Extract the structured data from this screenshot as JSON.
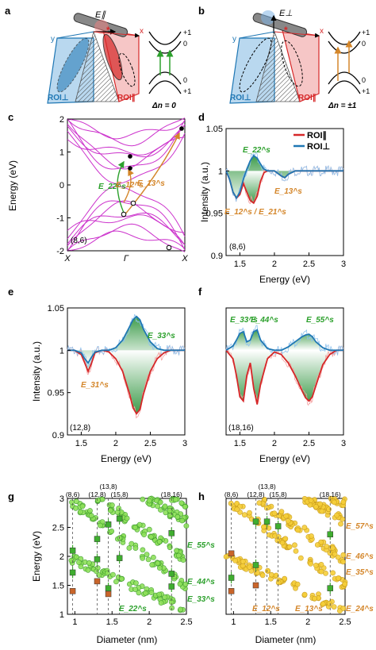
{
  "panel_letters": {
    "a": "a",
    "b": "b",
    "c": "c",
    "d": "d",
    "e": "e",
    "f": "f",
    "g": "g",
    "h": "h"
  },
  "colors": {
    "roi_par": "#d62728",
    "roi_perp": "#1f77b4",
    "green": "#2ca02c",
    "orange": "#d4862a",
    "gold": "#f2c230",
    "band": "#cc33cc"
  },
  "schematic": {
    "e_parallel": "E∥",
    "e_perp": "E⊥",
    "axis_x": "x",
    "axis_y": "y",
    "roi_perp": "ROI⊥",
    "roi_par": "ROI∥",
    "delta_n_a": "Δn = 0",
    "delta_n_b": "Δn = ±1",
    "levels": [
      "+1",
      "0",
      "0",
      "+1"
    ]
  },
  "chart_data": [
    {
      "id": "c",
      "type": "line",
      "ylabel": "Energy (eV)",
      "ylim": [
        -2,
        2
      ],
      "yticks": [
        "2",
        "1",
        "0",
        "-1",
        "-2"
      ],
      "xticks": [
        "X",
        "Γ",
        "X"
      ],
      "annotation": "(8,6)",
      "arrow_labels": [
        "E_22^s",
        "E_12^s",
        "E_13^s"
      ],
      "filled_states_eV": [
        1.7,
        1.0,
        0.85
      ],
      "empty_states_eV": [
        -0.45,
        -0.9,
        -1.85
      ]
    },
    {
      "id": "d",
      "type": "line",
      "xlabel": "Energy (eV)",
      "ylabel": "Intensity (a.u.)",
      "xlim": [
        1.3,
        3
      ],
      "ylim": [
        0.9,
        1.05
      ],
      "xticks": [
        "1.5",
        "2",
        "2.5",
        "3"
      ],
      "yticks": [
        "1.05",
        "1",
        "0.95",
        "0.9"
      ],
      "annotation": "(8,6)",
      "series": [
        {
          "name": "ROI∥",
          "x": [
            1.3,
            1.35,
            1.4,
            1.45,
            1.5,
            1.55,
            1.6,
            1.65,
            1.7,
            1.75,
            1.8,
            1.85,
            1.9,
            2.0,
            2.1,
            2.15,
            2.2,
            2.3,
            2.5,
            2.7,
            3.0
          ],
          "y": [
            1.0,
            0.99,
            0.975,
            0.968,
            0.972,
            0.985,
            0.975,
            0.965,
            0.962,
            0.97,
            0.988,
            0.998,
            1.0,
            1.0,
            0.994,
            0.992,
            0.996,
            1.0,
            1.0,
            1.0,
            1.0
          ]
        },
        {
          "name": "ROI⊥",
          "x": [
            1.3,
            1.35,
            1.4,
            1.45,
            1.5,
            1.55,
            1.6,
            1.65,
            1.7,
            1.75,
            1.8,
            1.85,
            1.9,
            2.0,
            2.1,
            2.15,
            2.2,
            2.3,
            2.5,
            2.7,
            3.0
          ],
          "y": [
            1.0,
            0.99,
            0.975,
            0.968,
            0.975,
            0.99,
            1.002,
            1.012,
            1.018,
            1.015,
            1.008,
            1.002,
            1.0,
            1.0,
            0.994,
            0.992,
            0.996,
            1.0,
            1.0,
            1.0,
            1.0
          ]
        }
      ],
      "peak_labels": [
        "E_22^s",
        "E_12^s / E_21^s",
        "E_13^s"
      ]
    },
    {
      "id": "e",
      "type": "line",
      "xlabel": "Energy (eV)",
      "ylabel": "Intensity (a.u.)",
      "xlim": [
        1.3,
        3
      ],
      "ylim": [
        0.9,
        1.05
      ],
      "xticks": [
        "1.5",
        "2",
        "2.5",
        "3"
      ],
      "yticks": [
        "1.05",
        "1",
        "0.95",
        "0.9"
      ],
      "annotation": "(12,8)",
      "series": [
        {
          "name": "ROI∥",
          "x": [
            1.3,
            1.4,
            1.5,
            1.55,
            1.6,
            1.65,
            1.7,
            1.8,
            1.9,
            2.0,
            2.1,
            2.2,
            2.25,
            2.3,
            2.35,
            2.4,
            2.5,
            2.6,
            2.7,
            2.8,
            2.9,
            3.0
          ],
          "y": [
            1.0,
            1.0,
            0.995,
            0.985,
            0.975,
            0.985,
            0.997,
            1.0,
            0.998,
            0.99,
            0.975,
            0.948,
            0.932,
            0.925,
            0.93,
            0.948,
            0.975,
            0.99,
            0.997,
            1.0,
            1.0,
            1.0
          ]
        },
        {
          "name": "ROI⊥",
          "x": [
            1.3,
            1.4,
            1.5,
            1.55,
            1.6,
            1.65,
            1.7,
            1.8,
            1.9,
            2.0,
            2.1,
            2.2,
            2.25,
            2.3,
            2.35,
            2.4,
            2.5,
            2.6,
            2.7,
            2.8,
            2.9,
            3.0
          ],
          "y": [
            1.0,
            1.0,
            0.997,
            0.99,
            0.985,
            0.992,
            0.998,
            1.0,
            1.0,
            1.003,
            1.012,
            1.028,
            1.036,
            1.04,
            1.036,
            1.025,
            1.01,
            1.002,
            1.0,
            1.0,
            1.0,
            1.0
          ]
        }
      ],
      "peak_labels": [
        "E_33^s",
        "E_31^s"
      ]
    },
    {
      "id": "f",
      "type": "line",
      "xlabel": "Energy (eV)",
      "xlim": [
        1.3,
        3
      ],
      "ylim": [
        0.9,
        1.05
      ],
      "xticks": [
        "1.5",
        "2",
        "2.5",
        "3"
      ],
      "annotation": "(18,16)",
      "series": [
        {
          "name": "ROI∥",
          "x": [
            1.3,
            1.4,
            1.45,
            1.5,
            1.55,
            1.6,
            1.65,
            1.7,
            1.75,
            1.8,
            1.9,
            2.0,
            2.1,
            2.2,
            2.3,
            2.4,
            2.45,
            2.5,
            2.55,
            2.6,
            2.7,
            2.8,
            2.9,
            3.0
          ],
          "y": [
            1.0,
            0.99,
            0.97,
            0.945,
            0.94,
            0.97,
            0.985,
            0.955,
            0.936,
            0.96,
            0.99,
            0.998,
            0.995,
            0.985,
            0.97,
            0.952,
            0.944,
            0.94,
            0.945,
            0.958,
            0.983,
            0.995,
            1.0,
            1.0
          ]
        },
        {
          "name": "ROI⊥",
          "x": [
            1.3,
            1.4,
            1.45,
            1.5,
            1.55,
            1.6,
            1.65,
            1.7,
            1.75,
            1.8,
            1.9,
            2.0,
            2.1,
            2.2,
            2.3,
            2.4,
            2.45,
            2.5,
            2.55,
            2.6,
            2.7,
            2.8,
            2.9,
            3.0
          ],
          "y": [
            1.0,
            1.005,
            1.012,
            1.02,
            1.022,
            1.01,
            1.012,
            1.022,
            1.024,
            1.012,
            1.002,
            1.0,
            1.0,
            1.004,
            1.01,
            1.016,
            1.018,
            1.019,
            1.016,
            1.01,
            1.003,
            1.0,
            1.0,
            1.0
          ]
        }
      ],
      "peak_labels": [
        "E_33^s",
        "E_44^s",
        "E_55^s"
      ]
    },
    {
      "id": "g",
      "type": "scatter",
      "xlabel": "Diameter (nm)",
      "ylabel": "Energy (eV)",
      "xlim": [
        0.9,
        2.5
      ],
      "ylim": [
        1,
        3
      ],
      "xticks": [
        "1",
        "1.5",
        "2",
        "2.5"
      ],
      "yticks": [
        "3",
        "2.5",
        "2",
        "1.5",
        "1"
      ],
      "top_labels": [
        "(8,6)",
        "(12,8)",
        "(13,8)",
        "(15,8)",
        "(18,16)"
      ],
      "top_label_x": [
        0.97,
        1.3,
        1.45,
        1.6,
        2.3
      ],
      "band_labels": [
        "E_55^s",
        "E_44^s",
        "E_33^s",
        "E_22^s"
      ],
      "points": [
        {
          "name": "measured",
          "x": [
            0.97,
            0.97,
            1.3,
            1.3,
            1.45,
            1.45,
            1.6,
            1.6,
            2.3,
            2.3,
            2.3
          ],
          "y": [
            1.72,
            2.1,
            1.95,
            2.3,
            1.45,
            2.55,
            1.97,
            2.65,
            1.48,
            1.7,
            2.4
          ]
        },
        {
          "name": "measured-cross",
          "x": [
            0.97,
            1.3,
            1.45
          ],
          "y": [
            1.4,
            1.57,
            1.35
          ]
        }
      ]
    },
    {
      "id": "h",
      "type": "scatter",
      "xlabel": "Diameter (nm)",
      "xlim": [
        0.9,
        2.5
      ],
      "ylim": [
        1,
        3
      ],
      "xticks": [
        "1",
        "1.5",
        "2",
        "2.5"
      ],
      "top_labels": [
        "(8,6)",
        "(12,8)",
        "(13,8)",
        "(15,8)",
        "(18,16)"
      ],
      "top_label_x": [
        0.97,
        1.3,
        1.45,
        1.6,
        2.3
      ],
      "band_labels": [
        "E_57^s",
        "E_46^s",
        "E_35^s",
        "E_24^s",
        "E_12^s",
        "E_13^s"
      ],
      "points": [
        {
          "name": "measured",
          "x": [
            0.97,
            1.3,
            1.45,
            1.6,
            2.3,
            2.3,
            1.3
          ],
          "y": [
            1.63,
            1.85,
            2.6,
            2.52,
            2.38,
            1.45,
            2.6
          ]
        },
        {
          "name": "measured-cross",
          "x": [
            0.97,
            0.97,
            1.3
          ],
          "y": [
            2.05,
            1.4,
            1.5
          ]
        }
      ]
    }
  ]
}
